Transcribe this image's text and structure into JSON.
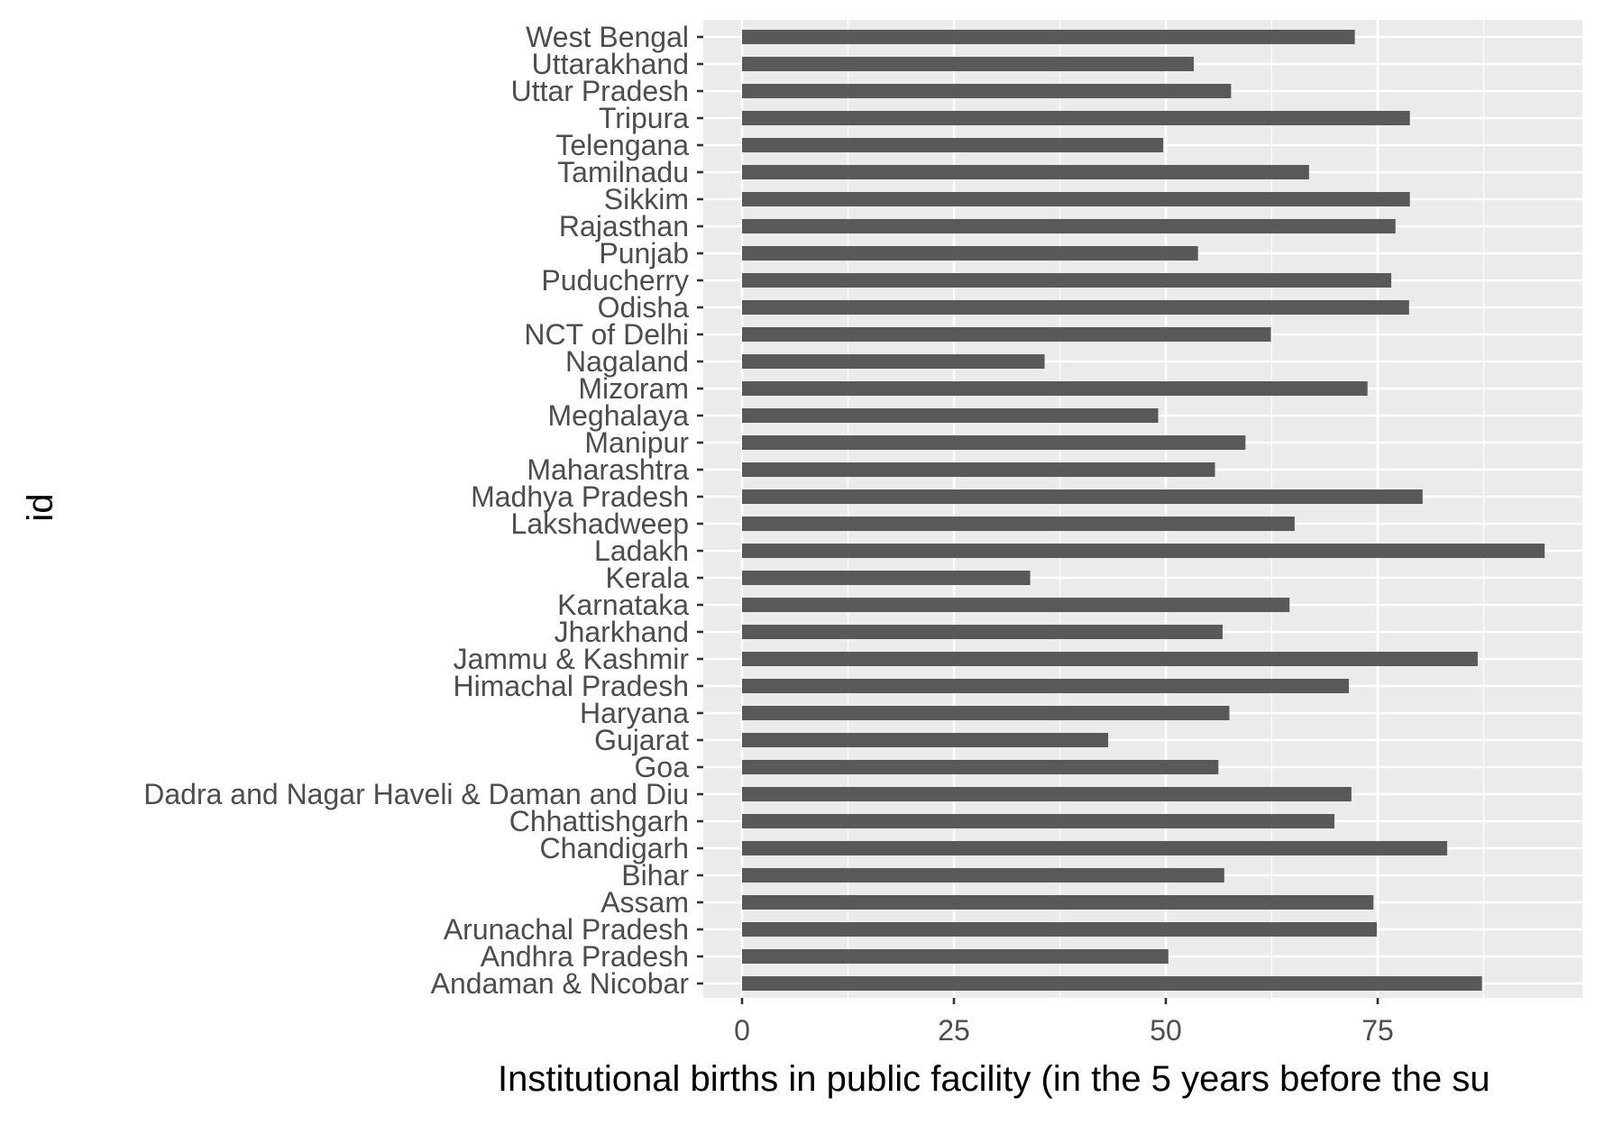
{
  "chart_data": {
    "type": "bar",
    "orientation": "horizontal",
    "xlabel": "Institutional births in public facility (in the 5 years before the su",
    "ylabel": "id",
    "xlim": [
      -9,
      100
    ],
    "xticks": [
      0,
      25,
      50,
      75
    ],
    "xtick_labels": [
      "0",
      "25",
      "50",
      "75"
    ],
    "grid": true,
    "colors": {
      "panel": "#ebebeb",
      "grid": "#ffffff",
      "bar": "#595959",
      "tick": "#333333"
    },
    "categories": [
      "Andaman & Nicobar",
      "Andhra Pradesh",
      "Arunachal Pradesh",
      "Assam",
      "Bihar",
      "Chandigarh",
      "Chhattishgarh",
      "Dadra and Nagar Haveli & Daman and Diu",
      "Goa",
      "Gujarat",
      "Haryana",
      "Himachal Pradesh",
      "Jammu & Kashmir",
      "Jharkhand",
      "Karnataka",
      "Kerala",
      "Ladakh",
      "Lakshadweep",
      "Madhya Pradesh",
      "Maharashtra",
      "Manipur",
      "Meghalaya",
      "Mizoram",
      "Nagaland",
      "NCT of Delhi",
      "Odisha",
      "Puducherry",
      "Punjab",
      "Rajasthan",
      "Sikkim",
      "Tamilnadu",
      "Telengana",
      "Tripura",
      "Uttar Pradesh",
      "Uttarakhand",
      "West Bengal"
    ],
    "values": [
      87.3,
      50.3,
      74.9,
      74.5,
      56.9,
      83.2,
      69.9,
      71.9,
      56.2,
      43.2,
      57.5,
      71.6,
      86.8,
      56.7,
      64.6,
      34.0,
      94.7,
      65.2,
      80.3,
      55.8,
      59.4,
      49.1,
      73.8,
      35.7,
      62.4,
      78.7,
      76.6,
      53.8,
      77.1,
      78.8,
      66.9,
      49.7,
      78.8,
      57.7,
      53.3,
      72.3
    ]
  }
}
